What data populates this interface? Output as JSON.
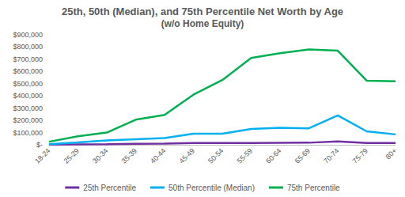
{
  "chart_data": {
    "type": "line",
    "title": "25th, 50th (Median), and 75th Percentile Net Worth by Age",
    "subtitle": "(w/o Home Equity)",
    "categories": [
      "18-24",
      "25-29",
      "30-34",
      "35-39",
      "40-44",
      "45-49",
      "50-54",
      "55-59",
      "60-64",
      "65-69",
      "70-74",
      "75-79",
      "80+"
    ],
    "series": [
      {
        "name": "25th Percentile",
        "color": "#7030a0",
        "values": [
          1000,
          3000,
          5000,
          8000,
          10000,
          15000,
          14000,
          15000,
          16000,
          17000,
          28000,
          14000,
          14000
        ]
      },
      {
        "name": "50th Percentile (Median)",
        "color": "#00b0f0",
        "values": [
          5000,
          20000,
          35000,
          45000,
          55000,
          90000,
          90000,
          130000,
          140000,
          135000,
          240000,
          110000,
          85000
        ]
      },
      {
        "name": "75th Percentile",
        "color": "#00b050",
        "values": [
          25000,
          70000,
          100000,
          205000,
          245000,
          410000,
          530000,
          710000,
          750000,
          780000,
          770000,
          525000,
          520000
        ]
      }
    ],
    "ylim": [
      0,
      900000
    ],
    "yticks": [
      {
        "value": 0,
        "label": "$-"
      },
      {
        "value": 100000,
        "label": "$100,000"
      },
      {
        "value": 200000,
        "label": "$200,000"
      },
      {
        "value": 300000,
        "label": "$300,000"
      },
      {
        "value": 400000,
        "label": "$400,000"
      },
      {
        "value": 500000,
        "label": "$500,000"
      },
      {
        "value": 600000,
        "label": "$600,000"
      },
      {
        "value": 700000,
        "label": "$700,000"
      },
      {
        "value": 800000,
        "label": "$800,000"
      },
      {
        "value": 900000,
        "label": "$900,000"
      }
    ],
    "grid": false,
    "legend": "bottom"
  }
}
